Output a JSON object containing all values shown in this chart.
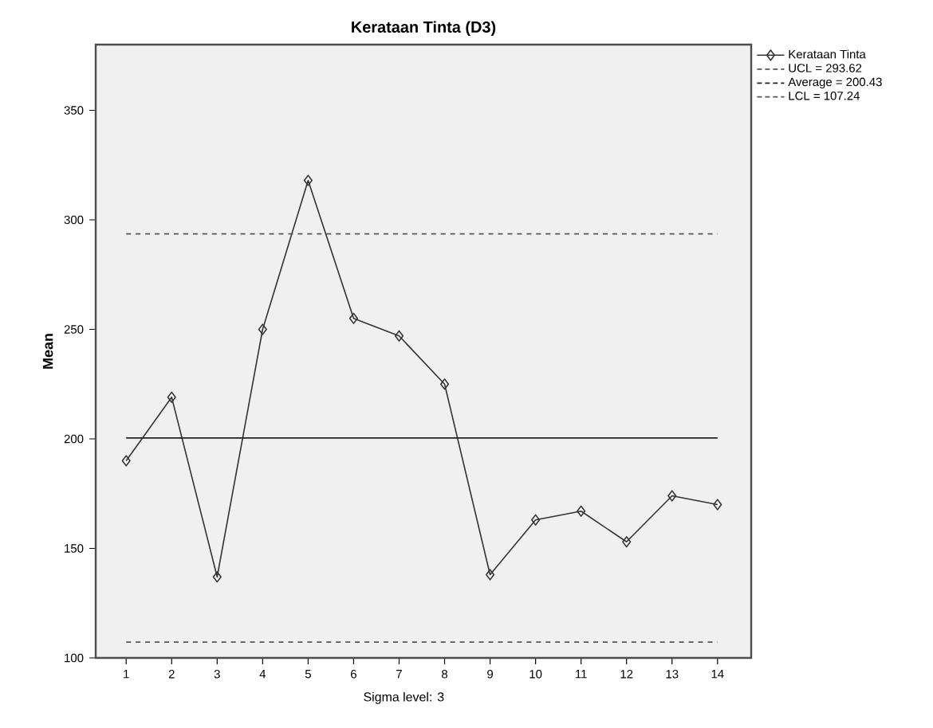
{
  "chart_data": {
    "type": "line",
    "title": "Kerataan Tinta (D3)",
    "ylabel": "Mean",
    "categories": [
      "1",
      "2",
      "3",
      "4",
      "5",
      "6",
      "7",
      "8",
      "9",
      "10",
      "11",
      "12",
      "13",
      "14"
    ],
    "series": [
      {
        "name": "Kerataan Tinta",
        "color": "#333333",
        "values": [
          190,
          219,
          137,
          250,
          318,
          255,
          247,
          225,
          138,
          163,
          167,
          153,
          174,
          170
        ]
      }
    ],
    "ylim": [
      100,
      380
    ],
    "yticks": [
      100,
      150,
      200,
      250,
      300,
      350
    ],
    "ref_lines": [
      {
        "axis": "y",
        "value": 293.62,
        "label": "UCL = 293.62",
        "line_style": "dashed",
        "color": "#555555"
      },
      {
        "axis": "y",
        "value": 200.43,
        "label": "Average = 200.43",
        "line_style": "solid",
        "color": "#222222"
      },
      {
        "axis": "y",
        "value": 107.24,
        "label": "LCL = 107.24",
        "line_style": "dashed",
        "color": "#555555"
      }
    ],
    "annotations": [
      "Sigma level: 3"
    ],
    "marker": "diamond",
    "line_style": "solid",
    "legend": "top right"
  }
}
